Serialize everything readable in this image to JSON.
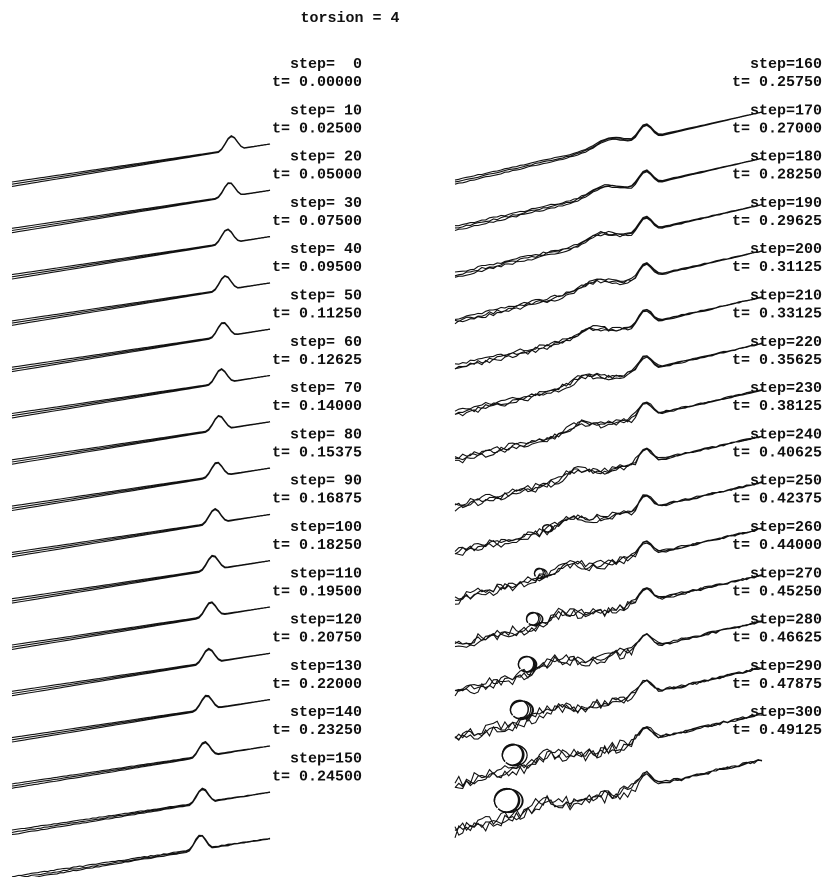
{
  "title": "torsion = 4",
  "columns": [
    [
      {
        "step": "step=  0",
        "t": "t= 0.00000"
      },
      {
        "step": "step= 10",
        "t": "t= 0.02500"
      },
      {
        "step": "step= 20",
        "t": "t= 0.05000"
      },
      {
        "step": "step= 30",
        "t": "t= 0.07500"
      },
      {
        "step": "step= 40",
        "t": "t= 0.09500"
      },
      {
        "step": "step= 50",
        "t": "t= 0.11250"
      },
      {
        "step": "step= 60",
        "t": "t= 0.12625"
      },
      {
        "step": "step= 70",
        "t": "t= 0.14000"
      },
      {
        "step": "step= 80",
        "t": "t= 0.15375"
      },
      {
        "step": "step= 90",
        "t": "t= 0.16875"
      },
      {
        "step": "step=100",
        "t": "t= 0.18250"
      },
      {
        "step": "step=110",
        "t": "t= 0.19500"
      },
      {
        "step": "step=120",
        "t": "t= 0.20750"
      },
      {
        "step": "step=130",
        "t": "t= 0.22000"
      },
      {
        "step": "step=140",
        "t": "t= 0.23250"
      },
      {
        "step": "step=150",
        "t": "t= 0.24500"
      }
    ],
    [
      {
        "step": "step=160",
        "t": "t= 0.25750"
      },
      {
        "step": "step=170",
        "t": "t= 0.27000"
      },
      {
        "step": "step=180",
        "t": "t= 0.28250"
      },
      {
        "step": "step=190",
        "t": "t= 0.29625"
      },
      {
        "step": "step=200",
        "t": "t= 0.31125"
      },
      {
        "step": "step=210",
        "t": "t= 0.33125"
      },
      {
        "step": "step=220",
        "t": "t= 0.35625"
      },
      {
        "step": "step=230",
        "t": "t= 0.38125"
      },
      {
        "step": "step=240",
        "t": "t= 0.40625"
      },
      {
        "step": "step=250",
        "t": "t= 0.42375"
      },
      {
        "step": "step=260",
        "t": "t= 0.44000"
      },
      {
        "step": "step=270",
        "t": "t= 0.45250"
      },
      {
        "step": "step=280",
        "t": "t= 0.46625"
      },
      {
        "step": "step=290",
        "t": "t= 0.47875"
      },
      {
        "step": "step=300",
        "t": "t= 0.49125"
      }
    ]
  ]
}
